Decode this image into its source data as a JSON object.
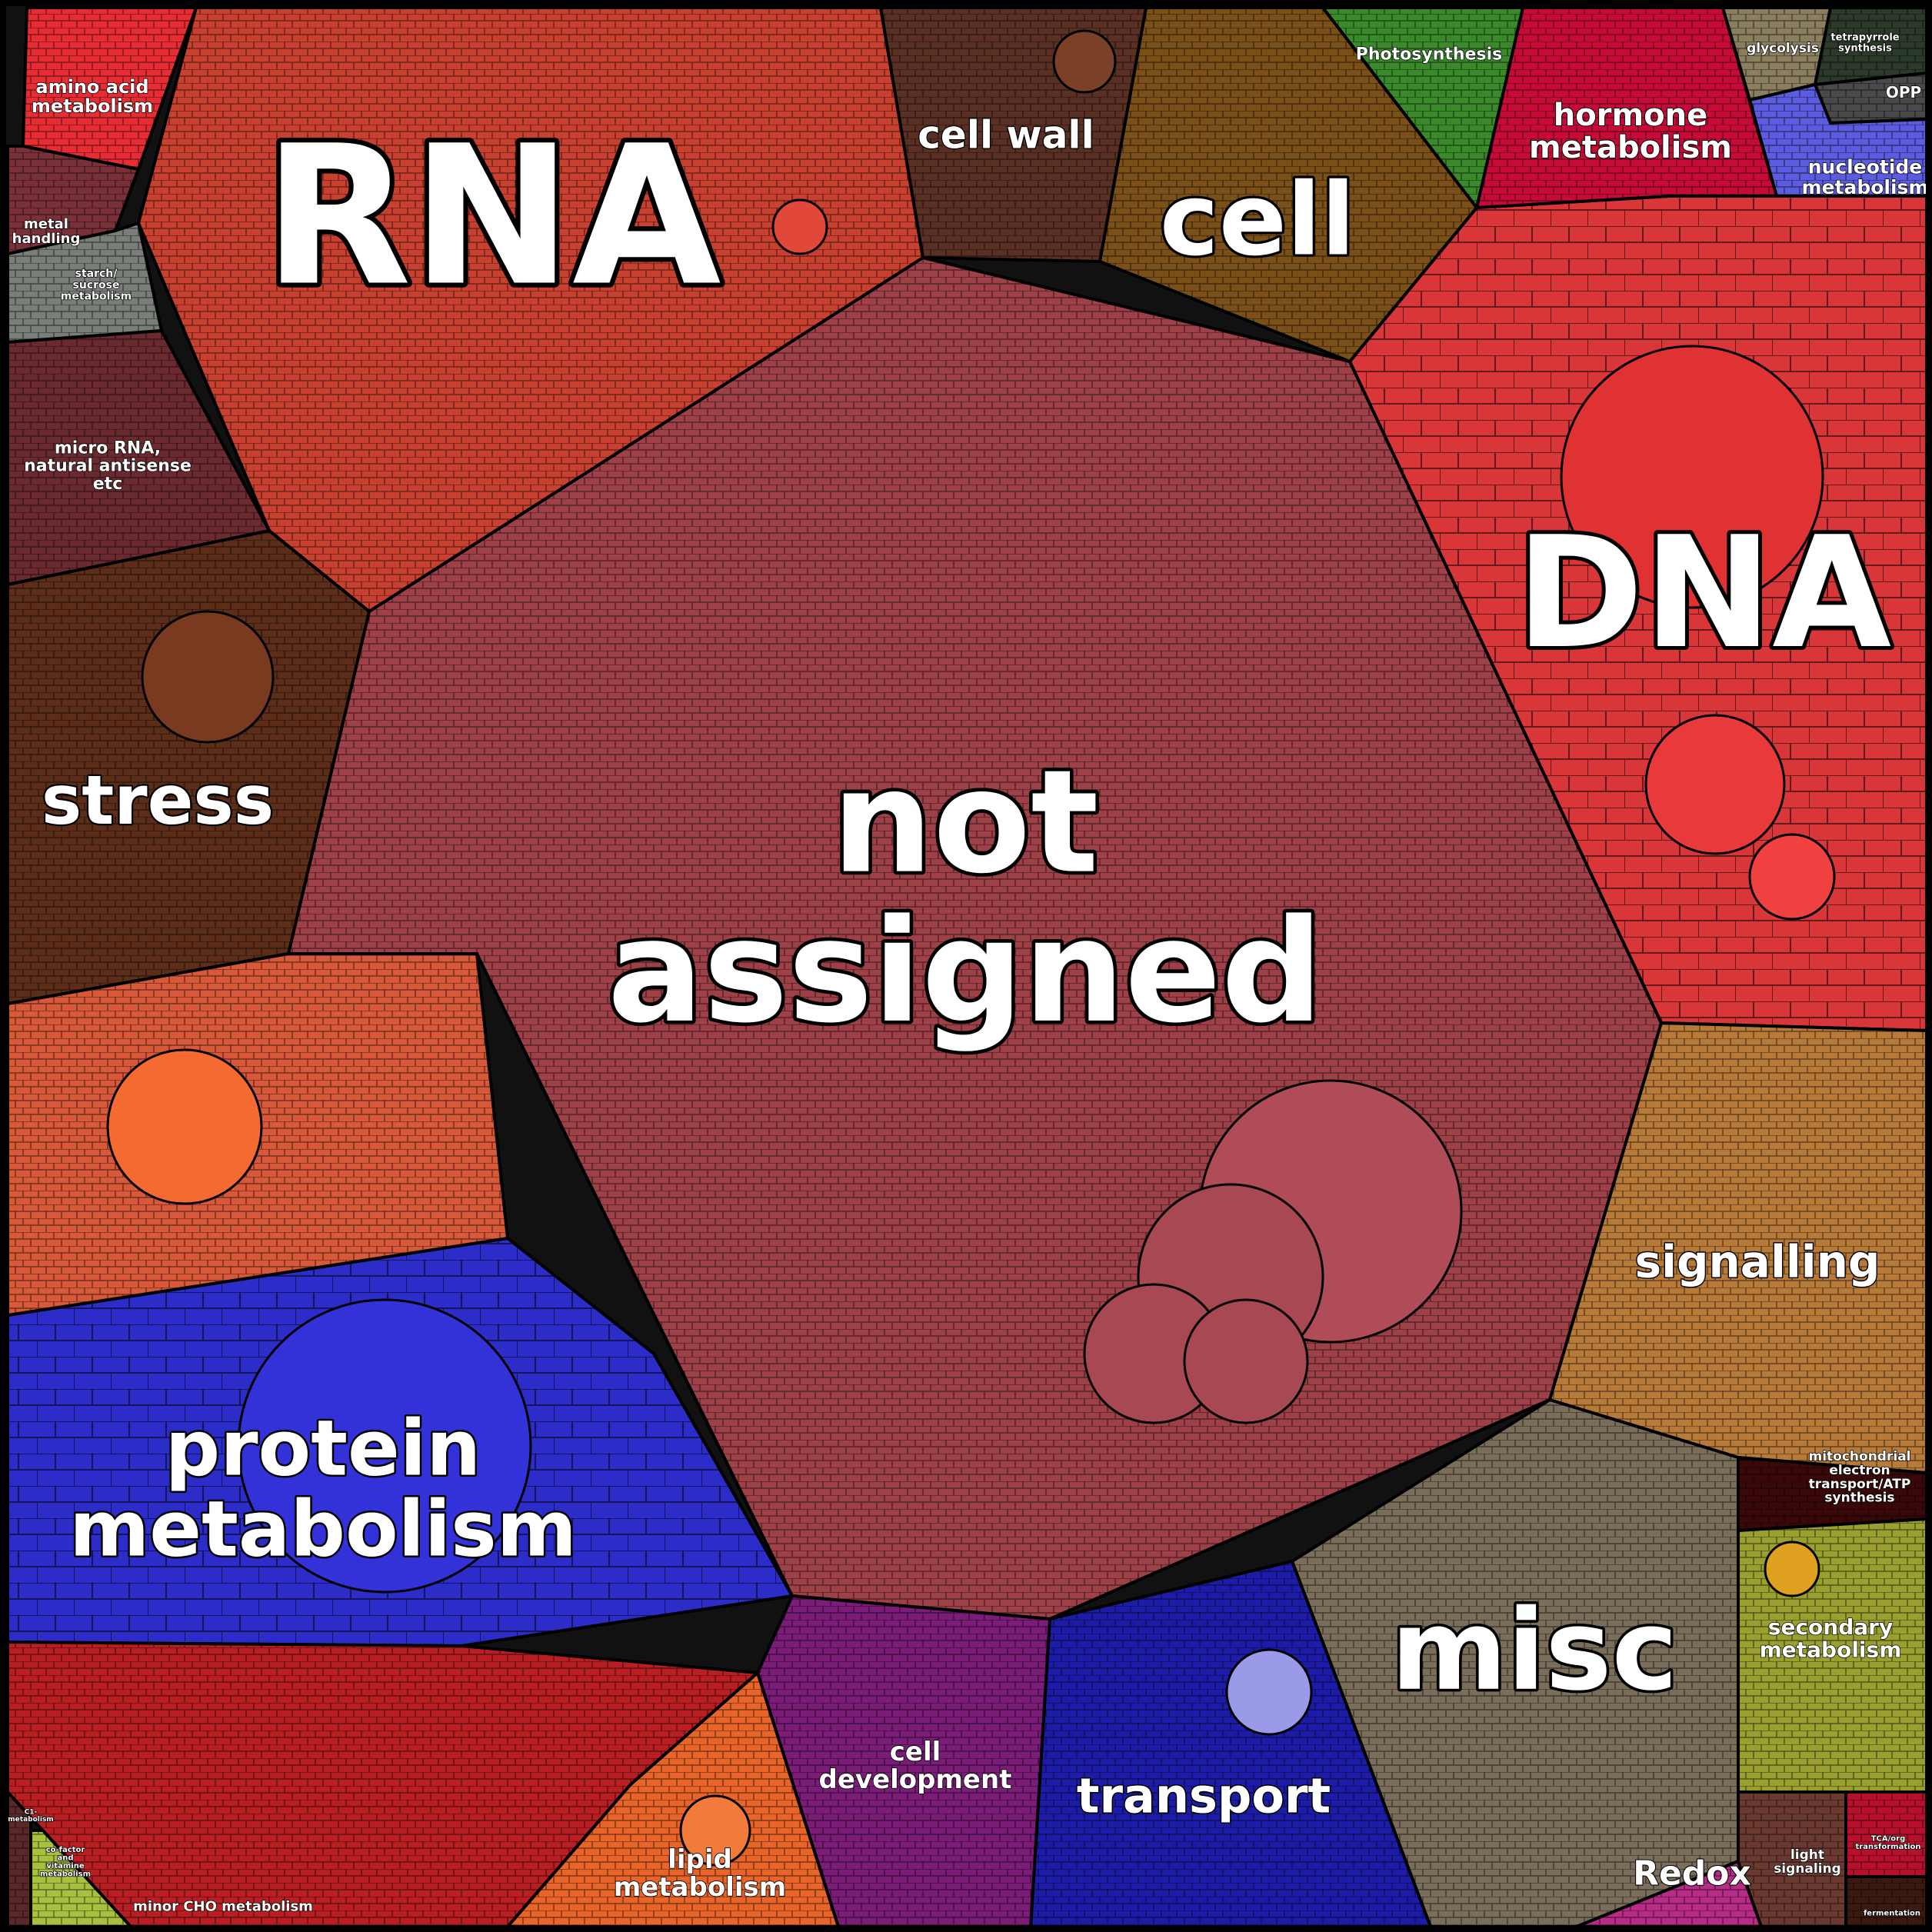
{
  "diagram": {
    "type": "voronoi-treemap",
    "categories": [
      {
        "id": "not-assigned",
        "lines": [
          "not",
          "assigned"
        ],
        "color": "#9e4048"
      },
      {
        "id": "rna",
        "lines": [
          "RNA"
        ],
        "color": "#c8402f"
      },
      {
        "id": "dna",
        "lines": [
          "DNA"
        ],
        "color": "#d83638"
      },
      {
        "id": "protein-metabolism",
        "lines": [
          "protein",
          "metabolism"
        ],
        "color": "#2c2cc8"
      },
      {
        "id": "cell",
        "lines": [
          "cell"
        ],
        "color": "#7a5018"
      },
      {
        "id": "cell-wall",
        "lines": [
          "cell wall"
        ],
        "color": "#5a3024"
      },
      {
        "id": "stress",
        "lines": [
          "stress"
        ],
        "color": "#5c2e1a"
      },
      {
        "id": "signalling",
        "lines": [
          "signalling"
        ],
        "color": "#b87a38"
      },
      {
        "id": "misc",
        "lines": [
          "misc"
        ],
        "color": "#7a6e5a"
      },
      {
        "id": "transport",
        "lines": [
          "transport"
        ],
        "color": "#1c1ca8"
      },
      {
        "id": "cell-development",
        "lines": [
          "cell",
          "development"
        ],
        "color": "#7a1c78"
      },
      {
        "id": "lipid-metabolism",
        "lines": [
          "lipid",
          "metabolism"
        ],
        "color": "#e86428"
      },
      {
        "id": "hormone-metabolism",
        "lines": [
          "hormone",
          "metabolism"
        ],
        "color": "#c80a38"
      },
      {
        "id": "photosynthesis",
        "lines": [
          "Photosynthesis"
        ],
        "color": "#3a8a2c"
      },
      {
        "id": "glycolysis",
        "lines": [
          "glycolysis"
        ],
        "color": "#8a7e5e"
      },
      {
        "id": "tetrapyrrole-synthesis",
        "lines": [
          "tetrapyrrole",
          "synthesis"
        ],
        "color": "#2c3a2a"
      },
      {
        "id": "opp",
        "lines": [
          "OPP"
        ],
        "color": "#4a4a4a"
      },
      {
        "id": "nucleotide-metabolism",
        "lines": [
          "nucleotide",
          "metabolism"
        ],
        "color": "#5c5ce0"
      },
      {
        "id": "amino-acid-metabolism",
        "lines": [
          "amino acid",
          "metabolism"
        ],
        "color": "#e82c34"
      },
      {
        "id": "metal-handling",
        "lines": [
          "metal",
          "handling"
        ],
        "color": "#7a3038"
      },
      {
        "id": "starch-sucrose-metabolism",
        "lines": [
          "starch/",
          "sucrose",
          "metabolism"
        ],
        "color": "#7a7e78"
      },
      {
        "id": "micro-rna",
        "lines": [
          "micro RNA,",
          "natural antisense",
          "etc"
        ],
        "color": "#6a2a30"
      },
      {
        "id": "mitochondrial-electron-transport",
        "lines": [
          "mitochondrial",
          "electron",
          "transport/ATP",
          "synthesis"
        ],
        "color": "#3a0808"
      },
      {
        "id": "secondary-metabolism",
        "lines": [
          "secondary",
          "metabolism"
        ],
        "color": "#9aa030"
      },
      {
        "id": "redox",
        "lines": [
          "Redox"
        ],
        "color": "#b82c88"
      },
      {
        "id": "light-signaling",
        "lines": [
          "light",
          "signaling"
        ],
        "color": "#6a3a30"
      },
      {
        "id": "tca-org-transformation",
        "lines": [
          "TCA/org",
          "transformation"
        ],
        "color": "#b8102c"
      },
      {
        "id": "fermentation",
        "lines": [
          "fermentation"
        ],
        "color": "#3a1a10"
      },
      {
        "id": "minor-cho-metabolism",
        "lines": [
          "minor CHO metabolism"
        ],
        "color": "#2a2420"
      },
      {
        "id": "cofactor-vitamine-metabolism",
        "lines": [
          "co-factor",
          "and",
          "vitamine",
          "metabolism"
        ],
        "color": "#a8c040"
      },
      {
        "id": "c1-metabolism",
        "lines": [
          "C1-",
          "metabolism"
        ],
        "color": "#5a2828"
      },
      {
        "id": "unlabeled-orange",
        "lines": [],
        "color": "#d8583a"
      },
      {
        "id": "unlabeled-red",
        "lines": [],
        "color": "#b81e22"
      }
    ]
  }
}
